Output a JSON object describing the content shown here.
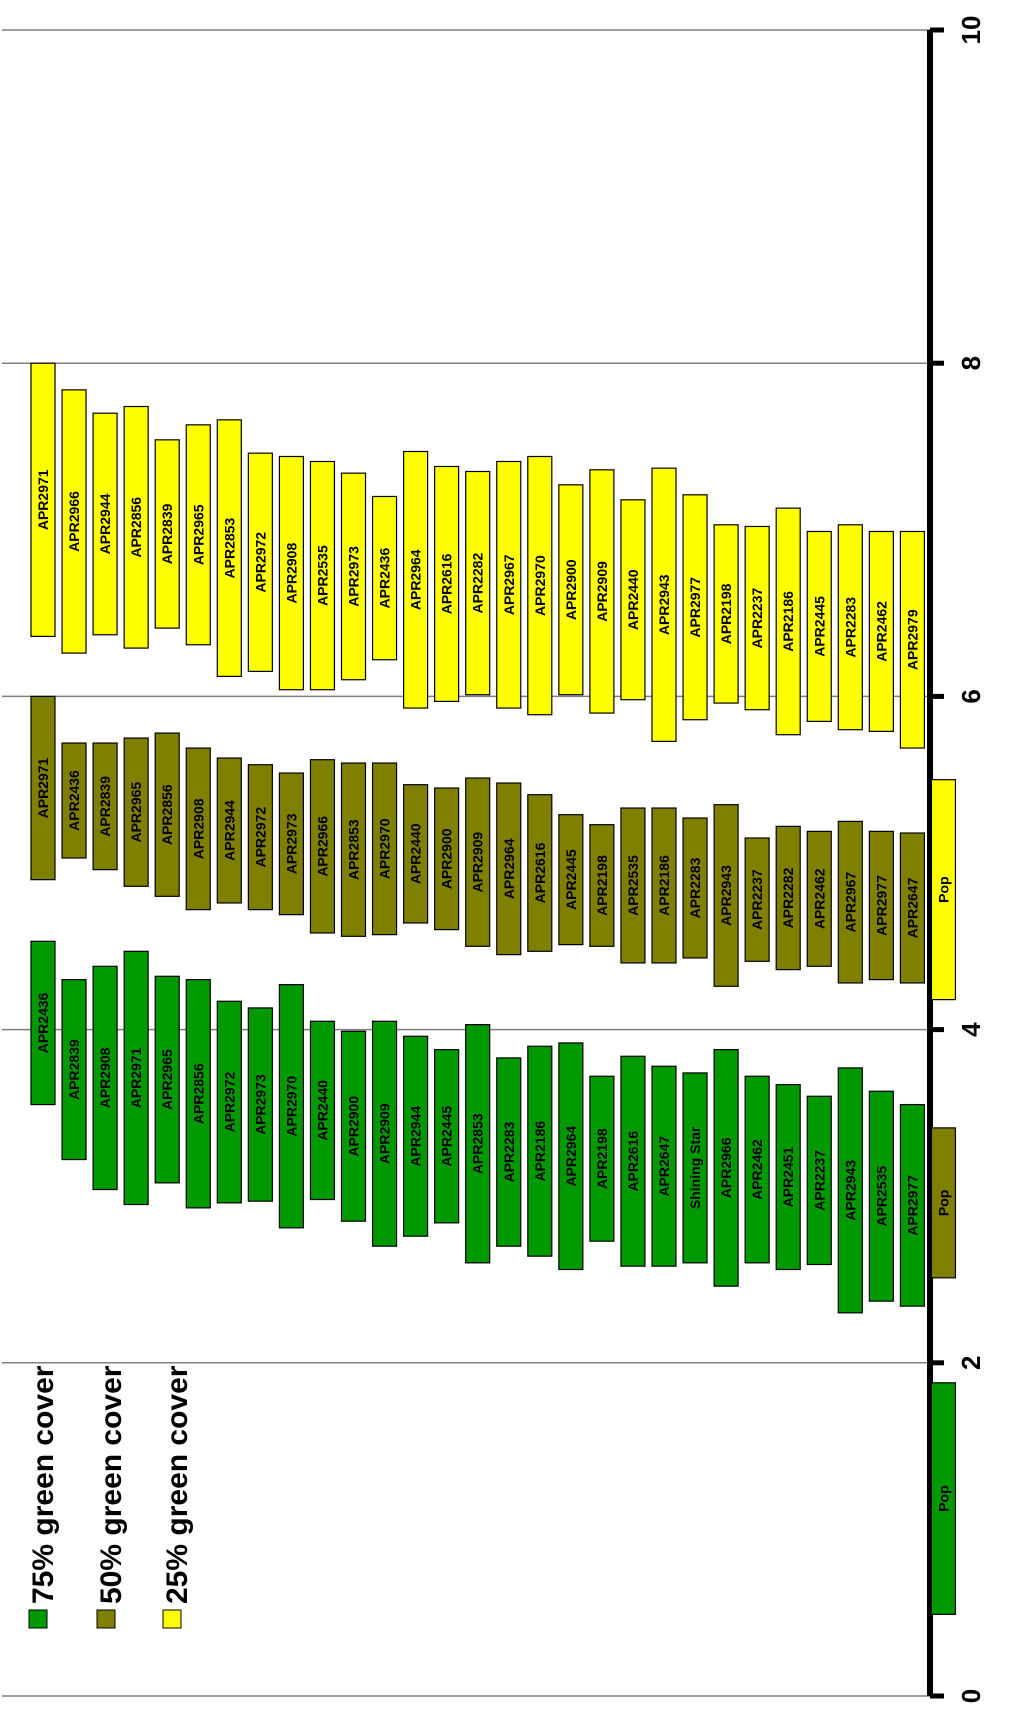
{
  "chart_data": {
    "type": "bar",
    "orientation": "floating-range, rotated",
    "title": "",
    "xlabel": "",
    "ylabel": "",
    "axis_range": [
      0,
      10
    ],
    "ticks": [
      "0",
      "2",
      "4",
      "6",
      "8",
      "10"
    ],
    "grid": true,
    "legend": {
      "placement": "bottom-left",
      "entries": [
        {
          "label": "75% green cover",
          "color": "#009900"
        },
        {
          "label": "50% green cover",
          "color": "#808000"
        },
        {
          "label": "25% green cover",
          "color": "#FFFF00"
        }
      ]
    },
    "series": [
      {
        "name": "75% green cover",
        "color": "#009900",
        "bars": [
          {
            "label": "APR2436",
            "low": 3.55,
            "high": 4.53
          },
          {
            "label": "APR2839",
            "low": 3.22,
            "high": 4.3
          },
          {
            "label": "APR2908",
            "low": 3.04,
            "high": 4.38
          },
          {
            "label": "APR2971",
            "low": 2.95,
            "high": 4.47
          },
          {
            "label": "APR2965",
            "low": 3.08,
            "high": 4.32
          },
          {
            "label": "APR2856",
            "low": 2.93,
            "high": 4.3
          },
          {
            "label": "APR2972",
            "low": 2.96,
            "high": 4.17
          },
          {
            "label": "APR2973",
            "low": 2.97,
            "high": 4.13
          },
          {
            "label": "APR2970",
            "low": 2.81,
            "high": 4.27
          },
          {
            "label": "APR2440",
            "low": 2.98,
            "high": 4.05
          },
          {
            "label": "APR2900",
            "low": 2.85,
            "high": 3.99
          },
          {
            "label": "APR2909",
            "low": 2.7,
            "high": 4.05
          },
          {
            "label": "APR2944",
            "low": 2.76,
            "high": 3.96
          },
          {
            "label": "APR2445",
            "low": 2.84,
            "high": 3.88
          },
          {
            "label": "APR2853",
            "low": 2.6,
            "high": 4.03
          },
          {
            "label": "APR2283",
            "low": 2.7,
            "high": 3.83
          },
          {
            "label": "APR2186",
            "low": 2.64,
            "high": 3.9
          },
          {
            "label": "APR2964",
            "low": 2.56,
            "high": 3.92
          },
          {
            "label": "APR2198",
            "low": 2.73,
            "high": 3.72
          },
          {
            "label": "APR2616",
            "low": 2.58,
            "high": 3.84
          },
          {
            "label": "APR2647",
            "low": 2.58,
            "high": 3.78
          },
          {
            "label": "Shining Star",
            "low": 2.6,
            "high": 3.74
          },
          {
            "label": "APR2966",
            "low": 2.46,
            "high": 3.88
          },
          {
            "label": "APR2462",
            "low": 2.6,
            "high": 3.72
          },
          {
            "label": "APR2451",
            "low": 2.56,
            "high": 3.67
          },
          {
            "label": "APR2237",
            "low": 2.59,
            "high": 3.6
          },
          {
            "label": "APR2943",
            "low": 2.3,
            "high": 3.77
          },
          {
            "label": "APR2535",
            "low": 2.37,
            "high": 3.63
          },
          {
            "label": "APR2977",
            "low": 2.34,
            "high": 3.55
          },
          {
            "label": "Pop",
            "low": 0.49,
            "high": 1.88
          }
        ]
      },
      {
        "name": "50% green cover",
        "color": "#808000",
        "bars": [
          {
            "label": "APR2971",
            "low": 4.9,
            "high": 6.0
          },
          {
            "label": "APR2436",
            "low": 5.03,
            "high": 5.72
          },
          {
            "label": "APR2839",
            "low": 4.96,
            "high": 5.72
          },
          {
            "label": "APR2965",
            "low": 4.86,
            "high": 5.75
          },
          {
            "label": "APR2856",
            "low": 4.8,
            "high": 5.78
          },
          {
            "label": "APR2908",
            "low": 4.72,
            "high": 5.69
          },
          {
            "label": "APR2944",
            "low": 4.76,
            "high": 5.63
          },
          {
            "label": "APR2972",
            "low": 4.72,
            "high": 5.59
          },
          {
            "label": "APR2973",
            "low": 4.69,
            "high": 5.54
          },
          {
            "label": "APR2966",
            "low": 4.58,
            "high": 5.62
          },
          {
            "label": "APR2853",
            "low": 4.56,
            "high": 5.6
          },
          {
            "label": "APR2970",
            "low": 4.57,
            "high": 5.6
          },
          {
            "label": "APR2440",
            "low": 4.64,
            "high": 5.47
          },
          {
            "label": "APR2900",
            "low": 4.6,
            "high": 5.45
          },
          {
            "label": "APR2909",
            "low": 4.5,
            "high": 5.51
          },
          {
            "label": "APR2964",
            "low": 4.45,
            "high": 5.48
          },
          {
            "label": "APR2616",
            "low": 4.47,
            "high": 5.41
          },
          {
            "label": "APR2445",
            "low": 4.51,
            "high": 5.29
          },
          {
            "label": "APR2198",
            "low": 4.5,
            "high": 5.23
          },
          {
            "label": "APR2535",
            "low": 4.4,
            "high": 5.33
          },
          {
            "label": "APR2186",
            "low": 4.4,
            "high": 5.33
          },
          {
            "label": "APR2283",
            "low": 4.43,
            "high": 5.27
          },
          {
            "label": "APR2943",
            "low": 4.26,
            "high": 5.35
          },
          {
            "label": "APR2237",
            "low": 4.41,
            "high": 5.15
          },
          {
            "label": "APR2282",
            "low": 4.36,
            "high": 5.22
          },
          {
            "label": "APR2462",
            "low": 4.38,
            "high": 5.19
          },
          {
            "label": "APR2967",
            "low": 4.28,
            "high": 5.25
          },
          {
            "label": "APR2977",
            "low": 4.3,
            "high": 5.19
          },
          {
            "label": "APR2647",
            "low": 4.28,
            "high": 5.18
          },
          {
            "label": "Pop",
            "low": 2.51,
            "high": 3.41
          }
        ]
      },
      {
        "name": "25% green cover",
        "color": "#FFFF00",
        "bars": [
          {
            "label": "APR2971",
            "low": 6.36,
            "high": 8.0
          },
          {
            "label": "APR2966",
            "low": 6.26,
            "high": 7.84
          },
          {
            "label": "APR2944",
            "low": 6.37,
            "high": 7.7
          },
          {
            "label": "APR2856",
            "low": 6.29,
            "high": 7.74
          },
          {
            "label": "APR2839",
            "low": 6.41,
            "high": 7.54
          },
          {
            "label": "APR2965",
            "low": 6.31,
            "high": 7.63
          },
          {
            "label": "APR2853",
            "low": 6.12,
            "high": 7.66
          },
          {
            "label": "APR2972",
            "low": 6.15,
            "high": 7.46
          },
          {
            "label": "APR2908",
            "low": 6.04,
            "high": 7.44
          },
          {
            "label": "APR2535",
            "low": 6.04,
            "high": 7.41
          },
          {
            "label": "APR2973",
            "low": 6.1,
            "high": 7.34
          },
          {
            "label": "APR2436",
            "low": 6.22,
            "high": 7.2
          },
          {
            "label": "APR2964",
            "low": 5.93,
            "high": 7.47
          },
          {
            "label": "APR2616",
            "low": 5.97,
            "high": 7.38
          },
          {
            "label": "APR2282",
            "low": 6.01,
            "high": 7.35
          },
          {
            "label": "APR2967",
            "low": 5.93,
            "high": 7.41
          },
          {
            "label": "APR2970",
            "low": 5.89,
            "high": 7.44
          },
          {
            "label": "APR2900",
            "low": 6.01,
            "high": 7.27
          },
          {
            "label": "APR2909",
            "low": 5.9,
            "high": 7.36
          },
          {
            "label": "APR2440",
            "low": 5.98,
            "high": 7.18
          },
          {
            "label": "APR2943",
            "low": 5.73,
            "high": 7.37
          },
          {
            "label": "APR2977",
            "low": 5.86,
            "high": 7.21
          },
          {
            "label": "APR2198",
            "low": 5.96,
            "high": 7.03
          },
          {
            "label": "APR2237",
            "low": 5.92,
            "high": 7.02
          },
          {
            "label": "APR2186",
            "low": 5.77,
            "high": 7.13
          },
          {
            "label": "APR2445",
            "low": 5.85,
            "high": 6.99
          },
          {
            "label": "APR2283",
            "low": 5.8,
            "high": 7.03
          },
          {
            "label": "APR2462",
            "low": 5.79,
            "high": 6.99
          },
          {
            "label": "APR2979",
            "low": 5.69,
            "high": 6.99
          },
          {
            "label": "Pop",
            "low": 4.18,
            "high": 5.5
          }
        ]
      }
    ]
  }
}
